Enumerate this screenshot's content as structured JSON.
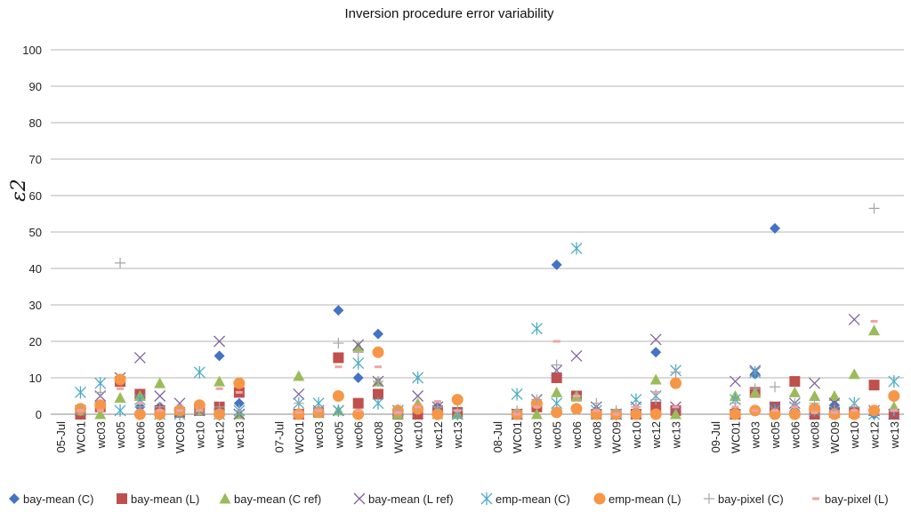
{
  "chart_data": {
    "type": "scatter",
    "title": "Inversion procedure error variability",
    "ylabel": "ε2",
    "xlabel": "",
    "ylim": [
      0,
      100
    ],
    "yticks": [
      0,
      10,
      20,
      30,
      40,
      50,
      60,
      70,
      80,
      90,
      100
    ],
    "grid": true,
    "legend_position": "bottom",
    "categories": [
      "05-Jul",
      "WC01",
      "wc03",
      "wc05",
      "wc06",
      "wc08",
      "WC09",
      "wc10",
      "wc12",
      "wc13",
      "",
      "07-Jul",
      "WC01",
      "wc03",
      "wc05",
      "wc06",
      "wc08",
      "WC09",
      "wc10",
      "wc12",
      "wc13",
      "",
      "08-Jul",
      "WC01",
      "wc03",
      "wc05",
      "wc06",
      "wc08",
      "WC09",
      "wc10",
      "wc12",
      "wc13",
      "",
      "09-Jul",
      "WC01",
      "wc03",
      "wc05",
      "wc06",
      "wc08",
      "WC09",
      "wc10",
      "wc12",
      "wc13"
    ],
    "series": [
      {
        "name": "bay-mean (C)",
        "color": "#4472C4",
        "marker": "diamond",
        "values": [
          null,
          1,
          2,
          9,
          2,
          2,
          1,
          1,
          16,
          3,
          null,
          null,
          0,
          1,
          28.5,
          10,
          22,
          0,
          0,
          2,
          0,
          null,
          null,
          0,
          2,
          41,
          5,
          1,
          0,
          0,
          17,
          1,
          null,
          null,
          1,
          11,
          51,
          1,
          1,
          2.5,
          0,
          0,
          0
        ]
      },
      {
        "name": "bay-mean (L)",
        "color": "#C0504D",
        "marker": "square",
        "values": [
          null,
          0,
          2,
          9,
          5.5,
          1,
          0.5,
          1,
          2,
          6,
          null,
          null,
          0,
          0.5,
          15.5,
          3,
          5.5,
          0,
          0,
          1,
          0.5,
          null,
          null,
          0,
          2,
          10,
          5,
          0,
          0,
          0,
          2,
          1,
          null,
          null,
          0,
          6,
          2,
          9,
          0,
          0.5,
          0.5,
          8,
          0
        ]
      },
      {
        "name": "bay-mean (C ref)",
        "color": "#9BBB59",
        "marker": "triangle",
        "values": [
          null,
          1,
          0,
          4.5,
          5,
          8.5,
          1,
          1,
          9,
          0,
          null,
          null,
          10.5,
          0.5,
          1,
          18.5,
          9,
          0,
          3,
          0,
          0,
          null,
          null,
          0,
          0,
          6,
          5,
          0,
          0,
          1,
          9.5,
          0,
          null,
          null,
          5,
          6,
          1,
          6,
          5,
          5,
          11,
          23,
          2
        ]
      },
      {
        "name": "bay-mean (L ref)",
        "color": "#8064A2",
        "marker": "x",
        "values": [
          null,
          1,
          5,
          10,
          15.5,
          5,
          3,
          1,
          20,
          0,
          null,
          null,
          5.5,
          1,
          1,
          19,
          9,
          1,
          5,
          2,
          0,
          null,
          null,
          0,
          4,
          12,
          16,
          2,
          0,
          2,
          20.5,
          2,
          null,
          null,
          9,
          12,
          2,
          3,
          8.5,
          3,
          26,
          1,
          0
        ]
      },
      {
        "name": "emp-mean (C)",
        "color": "#4BACC6",
        "marker": "asterisk",
        "values": [
          null,
          6,
          8.5,
          1,
          4,
          0,
          0,
          11.5,
          0,
          1,
          null,
          null,
          3,
          3,
          1,
          14,
          3,
          1,
          10,
          1,
          0,
          null,
          null,
          5.5,
          23.5,
          3,
          45.5,
          1,
          0,
          4,
          5,
          12,
          null,
          null,
          4,
          11.5,
          1,
          2,
          1,
          1,
          3,
          0,
          9
        ]
      },
      {
        "name": "emp-mean (L)",
        "color": "#F79646",
        "marker": "circle",
        "values": [
          null,
          1.5,
          2.5,
          9.5,
          0,
          0,
          1,
          2.5,
          0,
          8.5,
          null,
          null,
          0,
          0.5,
          5,
          0,
          17,
          1,
          1.5,
          0,
          4,
          null,
          null,
          0,
          3,
          0.5,
          1.5,
          0,
          0,
          0,
          0,
          8.5,
          null,
          null,
          0,
          1,
          0,
          0,
          1.5,
          0,
          0,
          1,
          5
        ]
      },
      {
        "name": "bay-pixel (C)",
        "color": "#A6A6A6",
        "marker": "plus",
        "values": [
          null,
          1,
          6,
          41.5,
          2,
          2,
          1,
          1,
          2,
          1,
          null,
          null,
          3,
          1,
          19.5,
          17,
          9,
          1,
          2,
          2,
          1,
          null,
          null,
          1,
          4,
          13.5,
          5,
          3,
          1,
          2,
          4,
          11.5,
          null,
          null,
          3,
          7,
          7.5,
          3,
          3,
          1,
          2,
          56.5,
          1
        ]
      },
      {
        "name": "bay-pixel (L)",
        "color": "#F2A3A3",
        "marker": "dash",
        "values": [
          null,
          1,
          1,
          7,
          3,
          1,
          1,
          1,
          7,
          6,
          null,
          null,
          0.5,
          1,
          13,
          1,
          13,
          0.5,
          2,
          3.5,
          1,
          null,
          null,
          0,
          2,
          20,
          5,
          1,
          0,
          2,
          6,
          2,
          null,
          null,
          2,
          1,
          1,
          2,
          0.5,
          0.5,
          1,
          25.5,
          1
        ]
      }
    ]
  }
}
